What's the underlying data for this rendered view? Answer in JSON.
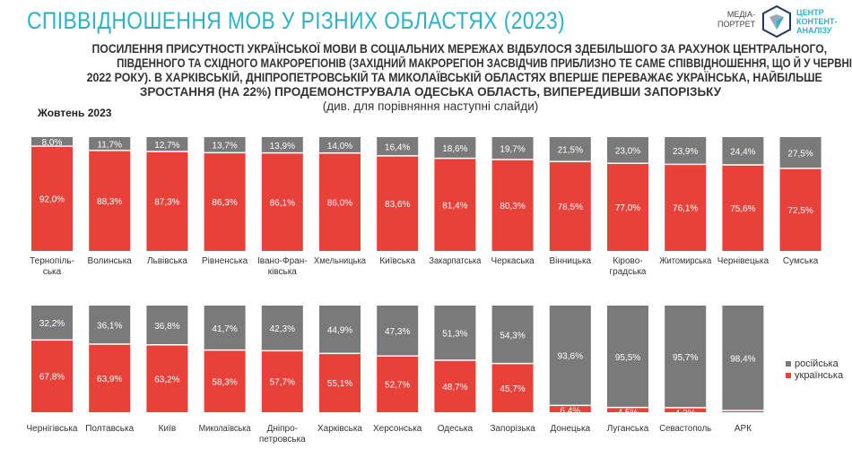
{
  "title": "СПІВВІДНОШЕННЯ МОВ У РІЗНИХ ОБЛАСТЯХ (2023)",
  "logo": {
    "left": [
      "МЕДІА-",
      "ПОРТРЕТ"
    ],
    "right": [
      "ЦЕНТР",
      "КОНТЕНТ-",
      "АНАЛІЗУ"
    ]
  },
  "subtitle": [
    "ПОСИЛЕННЯ ПРИСУТНОСТІ УКРАЇНСЬКОЇ МОВИ В СОЦІАЛЬНИХ МЕРЕЖАХ ВІДБУЛОСЯ ЗДЕБІЛЬШОГО ЗА РАХУНОК ЦЕНТРАЛЬНОГО,",
    "ПІВДЕННОГО ТА СХІДНОГО МАКРОРЕГІОНІВ (ЗАХІДНИЙ МАКРОРЕГІОН ЗАСВІДЧИВ ПРИБЛИЗНО ТЕ САМЕ СПІВВІДНОШЕННЯ, ЩО Й У ЧЕРВНІ",
    "2022 РОКУ). В ХАРКІВСЬКІЙ, ДНІПРОПЕТРОВСЬКІЙ ТА МИКОЛАЇВСЬКІЙ ОБЛАСТЯХ ВПЕРШЕ ПЕРЕВАЖАЄ УКРАЇНСЬКА, НАЙБІЛЬШЕ",
    "ЗРОСТАННЯ (НА 22%) ПРОДЕМОНСТРУВАЛА ОДЕСЬКА ОБЛАСТЬ, ВИПЕРЕДИВШИ ЗАПОРІЗЬКУ",
    "(див. для порівняння наступні слайди)"
  ],
  "period": "Жовтень 2023",
  "colors": {
    "ukrainian": "#e8413a",
    "russian": "#7a7a7a"
  },
  "chart_data": [
    {
      "type": "bar",
      "stacked": true,
      "ylim": [
        0,
        100
      ],
      "categories": [
        [
          "Тернопіль-",
          "ська"
        ],
        [
          "Волинська"
        ],
        [
          "Львівська"
        ],
        [
          "Рівненська"
        ],
        [
          "Івано-Фран-",
          "ківська"
        ],
        [
          "Хмельницька"
        ],
        [
          "Київська"
        ],
        [
          "Закарпатська"
        ],
        [
          "Черкаська"
        ],
        [
          "Вінницька"
        ],
        [
          "Кірово-",
          "градська"
        ],
        [
          "Житомирська"
        ],
        [
          "Чернівецька"
        ],
        [
          "Сумська"
        ]
      ],
      "series": [
        {
          "name": "українська",
          "values": [
            92.0,
            88.3,
            87.3,
            86.3,
            86.1,
            86.0,
            83.6,
            81.4,
            80.3,
            78.5,
            77.0,
            76.1,
            75.6,
            72.5
          ]
        },
        {
          "name": "російська",
          "values": [
            8.0,
            11.7,
            12.7,
            13.7,
            13.9,
            14.0,
            16.4,
            18.6,
            19.7,
            21.5,
            23.0,
            23.9,
            24.4,
            27.5
          ]
        }
      ]
    },
    {
      "type": "bar",
      "stacked": true,
      "ylim": [
        0,
        100
      ],
      "categories": [
        [
          "Чернігівська"
        ],
        [
          "Полтавська"
        ],
        [
          "Київ"
        ],
        [
          "Миколаївська"
        ],
        [
          "Дніпро-",
          "петровська"
        ],
        [
          "Харківська"
        ],
        [
          "Херсонська"
        ],
        [
          "Одеська"
        ],
        [
          "Запорізька"
        ],
        [
          "Донецька"
        ],
        [
          "Луганська"
        ],
        [
          "Севастополь"
        ],
        [
          "АРК"
        ]
      ],
      "series": [
        {
          "name": "українська",
          "values": [
            67.8,
            63.9,
            63.2,
            58.3,
            57.7,
            55.1,
            52.7,
            48.7,
            45.7,
            6.4,
            4.5,
            4.3,
            1.6
          ]
        },
        {
          "name": "російська",
          "values": [
            32.2,
            36.1,
            36.8,
            41.7,
            42.3,
            44.9,
            47.3,
            51.3,
            54.3,
            93.6,
            95.5,
            95.7,
            98.4
          ]
        }
      ]
    }
  ],
  "legend": [
    "російська",
    "українська"
  ]
}
